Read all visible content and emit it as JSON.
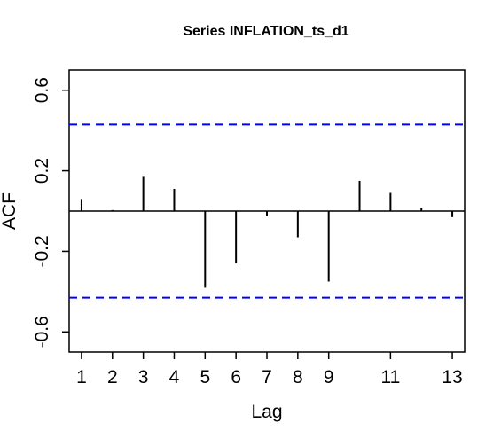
{
  "chart_data": {
    "type": "bar",
    "title": "Series  INFLATION_ts_d1",
    "xlabel": "Lag",
    "ylabel": "ACF",
    "xlim": [
      0.6,
      13.4
    ],
    "ylim": [
      -0.7,
      0.7
    ],
    "x_ticks": [
      1,
      2,
      3,
      4,
      5,
      6,
      7,
      8,
      9,
      11,
      13
    ],
    "y_ticks": [
      -0.6,
      -0.2,
      0.2,
      0.6
    ],
    "lags": [
      1,
      2,
      3,
      4,
      5,
      6,
      7,
      8,
      9,
      10,
      11,
      12,
      13
    ],
    "values": [
      0.06,
      0.005,
      0.17,
      0.11,
      -0.38,
      -0.26,
      -0.025,
      -0.13,
      -0.35,
      0.15,
      0.09,
      0.015,
      -0.03
    ],
    "confidence_band": 0.43,
    "confidence_color": "#0000ff",
    "bar_color": "#000000",
    "grid": false,
    "legend": "none"
  }
}
